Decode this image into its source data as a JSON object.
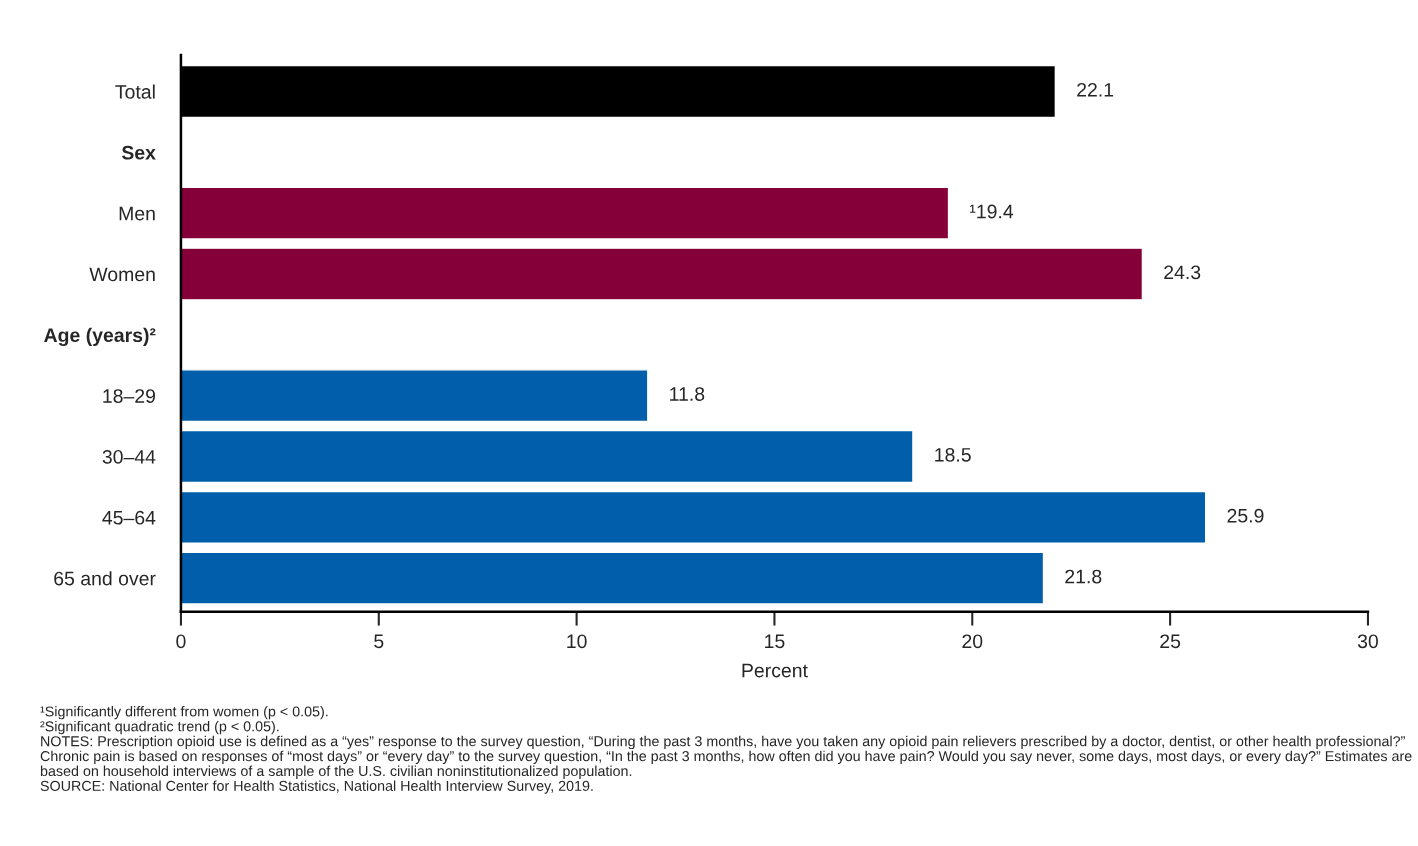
{
  "chart_data": {
    "type": "bar",
    "orientation": "horizontal",
    "categories": [
      "Total",
      "Sex",
      "Men",
      "Women",
      "Age (years)²",
      "18–29",
      "30–44",
      "45–64",
      "65 and over"
    ],
    "values": [
      22.1,
      null,
      19.4,
      24.3,
      null,
      11.8,
      18.5,
      25.9,
      21.8
    ],
    "colors": [
      "#000000",
      null,
      "#850038",
      "#850038",
      null,
      "#005eaa",
      "#005eaa",
      "#005eaa",
      "#005eaa"
    ],
    "value_labels": [
      "22.1",
      null,
      "¹19.4",
      "24.3",
      null,
      "11.8",
      "18.5",
      "25.9",
      "21.8"
    ],
    "xlabel": "Percent",
    "xlim": [
      0,
      30
    ],
    "xticks": [
      0,
      5,
      10,
      15,
      20,
      25,
      30
    ],
    "grid": false,
    "legend": false,
    "annotations": [
      "¹Significantly different from women (p < 0.05).",
      "²Significant quadratic trend (p < 0.05).",
      "NOTES: Prescription opioid use is defined as a “yes” response to the survey question, “During the past 3 months, have you taken any opioid pain relievers prescribed by a doctor, dentist, or other health professional?” Chronic pain is based on responses of “most days” or “every day” to the survey question, “In the past 3 months, how often did you have pain? Would you say never, some days, most days, or every day?” Estimates are based on household interviews of a sample of the U.S. civilian noninstitutionalized population.",
      "SOURCE: National Center for Health Statistics, National Health Interview Survey, 2019."
    ]
  }
}
